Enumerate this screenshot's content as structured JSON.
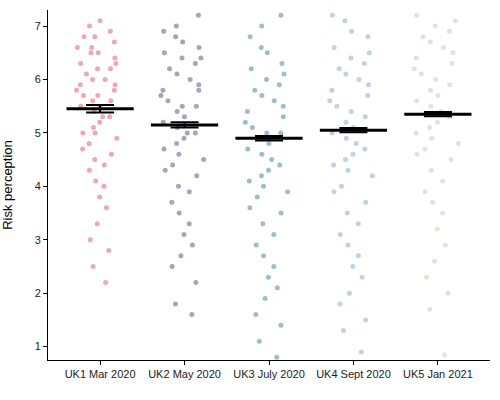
{
  "chart_data": {
    "type": "strip",
    "y_label": "Risk perception",
    "categories": [
      "UK1 Mar 2020",
      "UK2 May 2020",
      "UK3 July 2020",
      "UK4 Sept 2020",
      "UK5 Jan 2021"
    ],
    "colors": [
      "#e0506a",
      "#4b4b7a",
      "#3b7f9b",
      "#7fa7cf",
      "#cdc4b3"
    ],
    "values": [
      5.45,
      5.15,
      4.9,
      5.05,
      5.35
    ],
    "error": [
      0.07,
      0.05,
      0.04,
      0.04,
      0.04
    ],
    "points": [
      [
        7.1,
        7.0,
        6.9,
        6.8,
        6.8,
        6.7,
        6.6,
        6.6,
        6.5,
        6.5,
        6.4,
        6.3,
        6.3,
        6.2,
        6.2,
        6.1,
        6.0,
        6.0,
        5.9,
        5.9,
        5.8,
        5.8,
        5.7,
        5.7,
        5.6,
        5.6,
        5.5,
        5.5,
        5.4,
        5.3,
        5.3,
        5.2,
        5.1,
        5.0,
        5.0,
        4.9,
        4.8,
        4.7,
        4.6,
        4.5,
        4.4,
        4.3,
        4.1,
        4.0,
        3.8,
        3.6,
        3.3,
        3.0,
        2.8,
        2.5,
        2.2
      ],
      [
        7.2,
        7.0,
        6.9,
        6.8,
        6.7,
        6.6,
        6.5,
        6.4,
        6.4,
        6.3,
        6.2,
        6.1,
        6.0,
        5.9,
        5.8,
        5.8,
        5.7,
        5.6,
        5.5,
        5.5,
        5.4,
        5.3,
        5.2,
        5.1,
        5.0,
        5.0,
        4.9,
        4.8,
        4.7,
        4.6,
        4.5,
        4.4,
        4.3,
        4.2,
        4.0,
        3.9,
        3.7,
        3.5,
        3.3,
        3.1,
        2.9,
        2.7,
        2.5,
        2.2,
        1.8,
        1.6
      ],
      [
        7.2,
        7.0,
        6.8,
        6.6,
        6.5,
        6.3,
        6.2,
        6.1,
        6.0,
        5.9,
        5.8,
        5.7,
        5.6,
        5.5,
        5.4,
        5.3,
        5.2,
        5.1,
        5.0,
        5.0,
        4.9,
        4.8,
        4.7,
        4.6,
        4.5,
        4.4,
        4.3,
        4.2,
        4.1,
        4.0,
        3.9,
        3.8,
        3.6,
        3.5,
        3.3,
        3.1,
        2.9,
        2.7,
        2.5,
        2.3,
        2.1,
        1.9,
        1.6,
        1.4,
        1.1,
        0.8
      ],
      [
        7.2,
        7.1,
        6.9,
        6.8,
        6.6,
        6.5,
        6.4,
        6.3,
        6.2,
        6.1,
        6.0,
        5.9,
        5.8,
        5.7,
        5.6,
        5.5,
        5.4,
        5.3,
        5.2,
        5.1,
        5.0,
        4.9,
        4.8,
        4.7,
        4.6,
        4.5,
        4.4,
        4.3,
        4.2,
        4.0,
        3.9,
        3.7,
        3.5,
        3.3,
        3.1,
        2.9,
        2.7,
        2.5,
        2.3,
        2.0,
        1.8,
        1.5,
        1.3,
        0.9
      ],
      [
        7.2,
        7.1,
        7.0,
        6.9,
        6.8,
        6.7,
        6.6,
        6.5,
        6.4,
        6.3,
        6.2,
        6.1,
        6.0,
        5.9,
        5.8,
        5.7,
        5.6,
        5.5,
        5.4,
        5.3,
        5.2,
        5.1,
        5.0,
        4.9,
        4.8,
        4.7,
        4.6,
        4.5,
        4.3,
        4.1,
        3.9,
        3.7,
        3.5,
        3.2,
        2.9,
        2.6,
        2.3,
        2.0,
        1.7,
        0.85
      ]
    ],
    "ylim": [
      0.75,
      7.3
    ],
    "yticks": [
      1,
      2,
      3,
      4,
      5,
      6,
      7
    ],
    "grid": false
  }
}
